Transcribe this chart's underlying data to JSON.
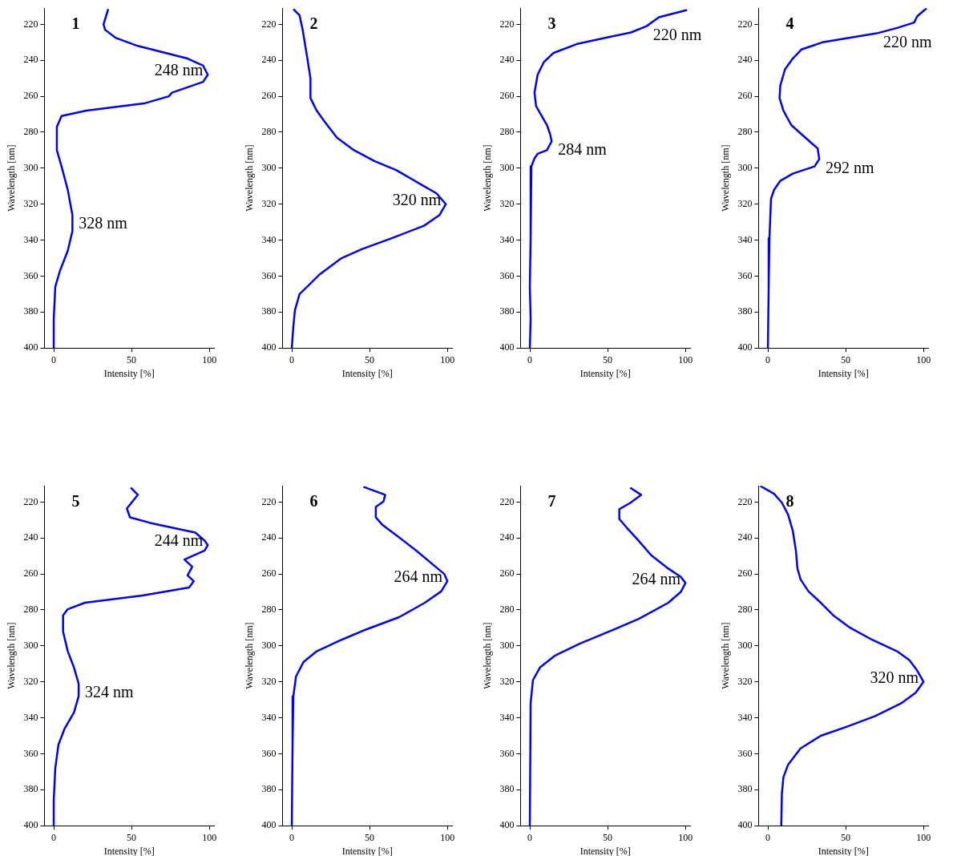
{
  "chart_data": [
    {
      "type": "line",
      "title": "1",
      "xlabel": "Intensity [%]",
      "ylabel": "Wavelength [nm]",
      "xlim": [
        -6,
        103
      ],
      "xticks": [
        0,
        50,
        100
      ],
      "ylim": [
        400,
        211
      ],
      "yticks": [
        220,
        240,
        260,
        280,
        300,
        320,
        340,
        360,
        380,
        400
      ],
      "grid": false,
      "legend": false,
      "marker": "none",
      "line_style": "solid",
      "series": [
        {
          "color": "#0000ff",
          "x": [
            35,
            32,
            33,
            40,
            54,
            86,
            96,
            99,
            96,
            76,
            74,
            58,
            21,
            5,
            2,
            2,
            5,
            9,
            12,
            12,
            9,
            4,
            1,
            0,
            0
          ],
          "values": [
            211.5,
            220,
            223,
            227.6,
            232,
            239,
            243,
            248,
            252,
            258,
            260,
            264,
            268,
            271,
            277,
            290,
            299,
            312,
            326,
            335,
            346,
            357,
            366,
            384,
            400
          ]
        }
      ],
      "annotations": [
        {
          "text": "248 nm",
          "x": 99,
          "y": 248
        },
        {
          "text": "328 nm",
          "x": 12,
          "y": 326
        }
      ]
    },
    {
      "type": "line",
      "title": "2",
      "xlabel": "Intensity [%]",
      "ylabel": "Wavelength [nm]",
      "xlim": [
        -6,
        103
      ],
      "xticks": [
        0,
        50,
        100
      ],
      "ylim": [
        400,
        211
      ],
      "yticks": [
        220,
        240,
        260,
        280,
        300,
        320,
        340,
        360,
        380,
        400
      ],
      "grid": false,
      "legend": false,
      "marker": "none",
      "line_style": "solid",
      "series": [
        {
          "color": "#0000ff",
          "x": [
            1,
            5,
            7,
            10,
            12,
            12,
            16,
            21,
            29,
            40,
            53,
            67,
            83,
            93,
            99,
            95,
            85,
            64,
            45,
            32,
            18,
            11,
            5,
            2,
            1,
            0
          ],
          "values": [
            211.5,
            215,
            223,
            239,
            250,
            261,
            268,
            274,
            283,
            290,
            296,
            301,
            309,
            314,
            320,
            326,
            332,
            339,
            345,
            350,
            359,
            365,
            370,
            379,
            388,
            400
          ]
        }
      ],
      "annotations": [
        {
          "text": "320 nm",
          "x": 99,
          "y": 320
        }
      ]
    },
    {
      "type": "line",
      "title": "3",
      "xlabel": "Intensity [%]",
      "ylabel": "Wavelength [nm]",
      "xlim": [
        -6,
        103
      ],
      "xticks": [
        0,
        50,
        100
      ],
      "ylim": [
        400,
        211
      ],
      "yticks": [
        220,
        240,
        260,
        280,
        300,
        320,
        340,
        360,
        380,
        400
      ],
      "grid": false,
      "legend": false,
      "marker": "none",
      "line_style": "solid",
      "series": [
        {
          "color": "#0000ff",
          "x": [
            101,
            83,
            75,
            65,
            43,
            30,
            15,
            9,
            5,
            3,
            4,
            11,
            13,
            14,
            11,
            5,
            3,
            1,
            0.5,
            0,
            0.5,
            0
          ],
          "values": [
            212,
            216,
            221,
            224.5,
            228.5,
            231,
            236,
            241,
            248,
            258,
            265.5,
            276,
            281,
            285,
            290,
            292,
            294.5,
            299,
            339,
            366,
            384,
            400
          ]
        }
      ],
      "annotations": [
        {
          "text": "220 nm",
          "x": 75,
          "y": 221
        },
        {
          "text": "284 nm",
          "x": 14,
          "y": 285
        }
      ]
    },
    {
      "type": "line",
      "title": "4",
      "xlabel": "Intensity [%]",
      "ylabel": "Wavelength [nm]",
      "xlim": [
        -6,
        103
      ],
      "xticks": [
        0,
        50,
        100
      ],
      "ylim": [
        400,
        211
      ],
      "yticks": [
        220,
        240,
        260,
        280,
        300,
        320,
        340,
        360,
        380,
        400
      ],
      "grid": false,
      "legend": false,
      "marker": "none",
      "line_style": "solid",
      "series": [
        {
          "color": "#0000ff",
          "x": [
            102,
            96,
            94,
            83,
            70,
            35,
            21.5,
            16,
            11,
            8,
            7.5,
            10,
            15,
            21.5,
            28,
            32,
            33,
            30,
            16,
            8,
            4,
            2,
            1,
            0.5,
            0
          ],
          "values": [
            211,
            215.5,
            219,
            222,
            225,
            230,
            234,
            239,
            245,
            254,
            261,
            268,
            276,
            281,
            286,
            289,
            295,
            299,
            303,
            307,
            312,
            317,
            339,
            366,
            400
          ]
        }
      ],
      "annotations": [
        {
          "text": "220 nm",
          "x": 70,
          "y": 225
        },
        {
          "text": "292 nm",
          "x": 33,
          "y": 295
        }
      ]
    },
    {
      "type": "line",
      "title": "5",
      "xlabel": "Intensity [%]",
      "ylabel": "Wavelength [nm]",
      "xlim": [
        -6,
        103
      ],
      "xticks": [
        0,
        50,
        100
      ],
      "ylim": [
        400,
        211
      ],
      "yticks": [
        220,
        240,
        260,
        280,
        300,
        320,
        340,
        360,
        380,
        400
      ],
      "grid": false,
      "legend": false,
      "marker": "none",
      "line_style": "solid",
      "series": [
        {
          "color": "#0000ff",
          "x": [
            49.5,
            54,
            47,
            49,
            62,
            91,
            97,
            99,
            97,
            84,
            89,
            86,
            90,
            87,
            57,
            20,
            9,
            6,
            6,
            9,
            13,
            16,
            16,
            13,
            7,
            3,
            1,
            0,
            0
          ],
          "values": [
            212,
            216,
            223.6,
            228.5,
            231.6,
            237,
            241.5,
            244,
            247,
            252,
            256,
            260.8,
            264,
            267.5,
            272,
            276,
            279.6,
            283,
            292,
            303,
            312,
            321,
            328,
            337,
            346,
            355,
            368,
            386,
            400
          ]
        }
      ],
      "annotations": [
        {
          "text": "244 nm",
          "x": 99,
          "y": 244
        },
        {
          "text": "324 nm",
          "x": 16,
          "y": 321
        }
      ]
    },
    {
      "type": "line",
      "title": "6",
      "xlabel": "Intensity [%]",
      "ylabel": "Wavelength [nm]",
      "xlim": [
        -6,
        103
      ],
      "xticks": [
        0,
        50,
        100
      ],
      "ylim": [
        400,
        211
      ],
      "yticks": [
        220,
        240,
        260,
        280,
        300,
        320,
        340,
        360,
        380,
        400
      ],
      "grid": false,
      "legend": false,
      "marker": "none",
      "line_style": "solid",
      "series": [
        {
          "color": "#0000ff",
          "x": [
            46,
            60,
            59,
            54,
            54,
            58,
            69,
            80,
            91,
            98,
            100,
            96,
            85.5,
            69,
            48,
            32,
            16,
            7.5,
            2.7,
            1,
            0.5,
            0
          ],
          "values": [
            211.5,
            216,
            219.6,
            222.7,
            228.5,
            232.5,
            239.7,
            247,
            255,
            260,
            264,
            269.7,
            276,
            284,
            290.8,
            296.6,
            303,
            309,
            317,
            328,
            355,
            400
          ]
        }
      ],
      "annotations": [
        {
          "text": "264 nm",
          "x": 100,
          "y": 264
        }
      ]
    },
    {
      "type": "line",
      "title": "7",
      "xlabel": "Intensity [%]",
      "ylabel": "Wavelength [nm]",
      "xlim": [
        -6,
        103
      ],
      "xticks": [
        0,
        50,
        100
      ],
      "ylim": [
        400,
        211
      ],
      "yticks": [
        220,
        240,
        260,
        280,
        300,
        320,
        340,
        360,
        380,
        400
      ],
      "grid": false,
      "legend": false,
      "marker": "none",
      "line_style": "solid",
      "series": [
        {
          "color": "#0000ff",
          "x": [
            64.5,
            71.5,
            64.5,
            57.5,
            57.5,
            62,
            69,
            78,
            89,
            97,
            100,
            97,
            89,
            70,
            51,
            32,
            16,
            6.5,
            2,
            0.5,
            0
          ],
          "values": [
            212,
            216,
            220.5,
            224,
            229.4,
            234,
            240.6,
            249.6,
            257,
            261.6,
            265,
            270,
            276,
            285,
            292,
            298.8,
            305.5,
            312,
            319,
            332,
            400
          ]
        }
      ],
      "annotations": [
        {
          "text": "264 nm",
          "x": 100,
          "y": 265
        }
      ]
    },
    {
      "type": "line",
      "title": "8",
      "xlabel": "Intensity [%]",
      "ylabel": "Wavelength [nm]",
      "xlim": [
        -6,
        103
      ],
      "xticks": [
        0,
        50,
        100
      ],
      "ylim": [
        400,
        211
      ],
      "yticks": [
        220,
        240,
        260,
        280,
        300,
        320,
        340,
        360,
        380,
        400
      ],
      "grid": false,
      "legend": false,
      "marker": "none",
      "line_style": "solid",
      "series": [
        {
          "color": "#0000ff",
          "x": [
            -5,
            4,
            9,
            13,
            16,
            18,
            19,
            21,
            26,
            34,
            42,
            53,
            67,
            83,
            91,
            96,
            100,
            95,
            85.5,
            69,
            50.5,
            34,
            21,
            13,
            10,
            9,
            8.6
          ],
          "values": [
            211,
            215.4,
            220.4,
            227,
            236,
            247,
            257,
            263,
            269.6,
            276,
            283,
            290,
            296.6,
            303,
            308,
            313.8,
            320,
            326,
            332,
            339,
            345,
            350,
            357,
            366,
            373,
            382,
            400
          ]
        }
      ],
      "annotations": [
        {
          "text": "320 nm",
          "x": 100,
          "y": 320
        }
      ]
    }
  ]
}
